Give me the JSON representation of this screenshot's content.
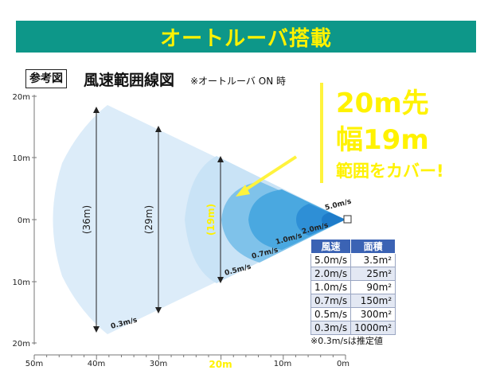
{
  "banner": {
    "title": "オートルーバ搭載"
  },
  "section": {
    "ref_label": "参考図",
    "title": "風速範囲線図",
    "note": "※オートルーバ ON 時"
  },
  "callout": {
    "line1": "20m先",
    "line2": "幅19m",
    "line3": "範囲をカバー!"
  },
  "axes": {
    "y_ticks": [
      "20m",
      "10m",
      "0m",
      "10m",
      "20m"
    ],
    "x_ticks": [
      "50m",
      "40m",
      "30m",
      "20m",
      "10m",
      "0m"
    ],
    "x_highlight": "20m"
  },
  "width_labels": [
    "(36m)",
    "(29m)",
    "(19m)"
  ],
  "zone_labels": [
    "5.0m/s",
    "2.0m/s",
    "1.0m/s",
    "0.7m/s",
    "0.5m/s",
    "0.3m/s"
  ],
  "table": {
    "headers": [
      "風速",
      "面積"
    ],
    "rows": [
      [
        "5.0m/s",
        "3.5m²"
      ],
      [
        "2.0m/s",
        "25m²"
      ],
      [
        "1.0m/s",
        "90m²"
      ],
      [
        "0.7m/s",
        "150m²"
      ],
      [
        "0.5m/s",
        "300m²"
      ],
      [
        "0.3m/s",
        "1000m²"
      ]
    ],
    "note": "※0.3m/sは推定値"
  },
  "colors": {
    "banner_bg": "#0d9789",
    "banner_text": "#fff200",
    "callout_text": "#fff200",
    "zone_fills": [
      "#dcecf9",
      "#c9e3f6",
      "#7fc2ea",
      "#4aa8e0",
      "#2e8fd6",
      "#1e7bc9"
    ]
  }
}
